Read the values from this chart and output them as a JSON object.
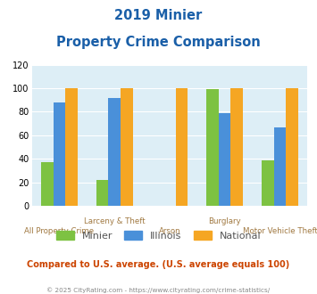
{
  "title_line1": "2019 Minier",
  "title_line2": "Property Crime Comparison",
  "categories": [
    "All Property Crime",
    "Larceny & Theft",
    "Arson",
    "Burglary",
    "Motor Vehicle Theft"
  ],
  "minier": [
    37,
    22,
    0,
    99,
    39
  ],
  "illinois": [
    88,
    92,
    0,
    79,
    67
  ],
  "national": [
    100,
    100,
    100,
    100,
    100
  ],
  "color_minier": "#7dc242",
  "color_illinois": "#4a90d9",
  "color_national": "#f5a623",
  "ylim": [
    0,
    120
  ],
  "yticks": [
    0,
    20,
    40,
    60,
    80,
    100,
    120
  ],
  "bg_color": "#ddeef6",
  "note": "Compared to U.S. average. (U.S. average equals 100)",
  "footer": "© 2025 CityRating.com - https://www.cityrating.com/crime-statistics/",
  "title_color": "#1a5fa8",
  "xlabel_color": "#a07840",
  "note_color": "#cc4400",
  "footer_color": "#888888",
  "bar_width": 0.22
}
